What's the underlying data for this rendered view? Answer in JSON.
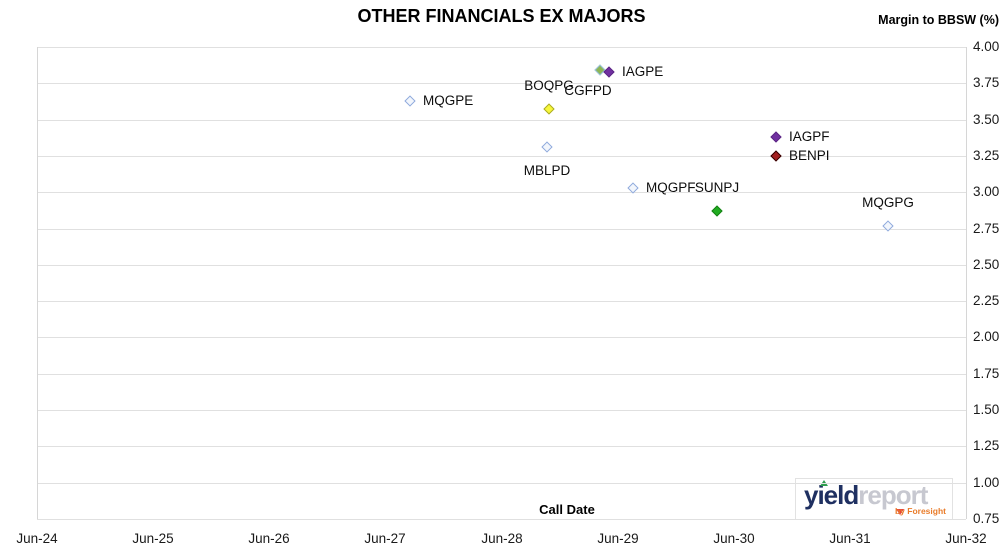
{
  "title": "OTHER FINANCIALS EX MAJORS",
  "right_axis_title": "Margin to BBSW (%)",
  "logo": {
    "part1": "yield",
    "part2": "report",
    "byline": "by Foresight"
  },
  "chart_data": {
    "type": "scatter",
    "title": "OTHER FINANCIALS EX MAJORS",
    "xlabel": "Call Date",
    "ylabel": "Margin to BBSW (%)",
    "grid": "horizontal",
    "legend": "none (points labelled inline)",
    "x_tick_labels": [
      "Jun-24",
      "Jun-25",
      "Jun-26",
      "Jun-27",
      "Jun-28",
      "Jun-29",
      "Jun-30",
      "Jun-31",
      "Jun-32"
    ],
    "x_range_years_from_jun24": [
      0,
      8
    ],
    "ylim": [
      0.75,
      4.0
    ],
    "y_tick_step": 0.25,
    "y_tick_labels": [
      "4.00",
      "3.75",
      "3.50",
      "3.25",
      "3.00",
      "2.75",
      "2.50",
      "2.25",
      "2.00",
      "1.75",
      "1.50",
      "1.25",
      "1.00",
      "0.75"
    ],
    "series": [
      {
        "name": "MQGPE",
        "x_years": 3.21,
        "y": 3.63,
        "marker": "diamond",
        "fill": "#f2f6fc",
        "border": "#8faadc",
        "label_pos": "right"
      },
      {
        "name": "BOQPG",
        "x_years": 4.41,
        "y": 3.57,
        "marker": "diamond",
        "fill": "#f7f73a",
        "border": "#aaaa28",
        "label_pos": "above"
      },
      {
        "name": "CGFPD",
        "x_years": 4.85,
        "y": 3.84,
        "marker": "diamond",
        "fill": "#8cb554",
        "border": "#9cc3e4",
        "label_pos": "below-left"
      },
      {
        "name": "IAGPE",
        "x_years": 4.93,
        "y": 3.83,
        "marker": "diamond",
        "fill": "#7030a0",
        "border": "#5c2784",
        "label_pos": "right"
      },
      {
        "name": "MBLPD",
        "x_years": 4.39,
        "y": 3.31,
        "marker": "diamond",
        "fill": "#f2f6fc",
        "border": "#8faadc",
        "label_pos": "below"
      },
      {
        "name": "IAGPF",
        "x_years": 6.36,
        "y": 3.38,
        "marker": "diamond",
        "fill": "#7030a0",
        "border": "#5c2784",
        "label_pos": "right"
      },
      {
        "name": "BENPI",
        "x_years": 6.36,
        "y": 3.25,
        "marker": "diamond",
        "fill": "#a32020",
        "border": "#330000",
        "label_pos": "right"
      },
      {
        "name": "MQGPF",
        "x_years": 5.13,
        "y": 3.03,
        "marker": "diamond",
        "fill": "#f2f6fc",
        "border": "#8faadc",
        "label_pos": "right"
      },
      {
        "name": "SUNPJ",
        "x_years": 5.86,
        "y": 2.87,
        "marker": "diamond",
        "fill": "#21ac21",
        "border": "#168016",
        "label_pos": "above"
      },
      {
        "name": "MQGPG",
        "x_years": 7.33,
        "y": 2.77,
        "marker": "diamond",
        "fill": "#f2f6fc",
        "border": "#8faadc",
        "label_pos": "above"
      }
    ]
  }
}
